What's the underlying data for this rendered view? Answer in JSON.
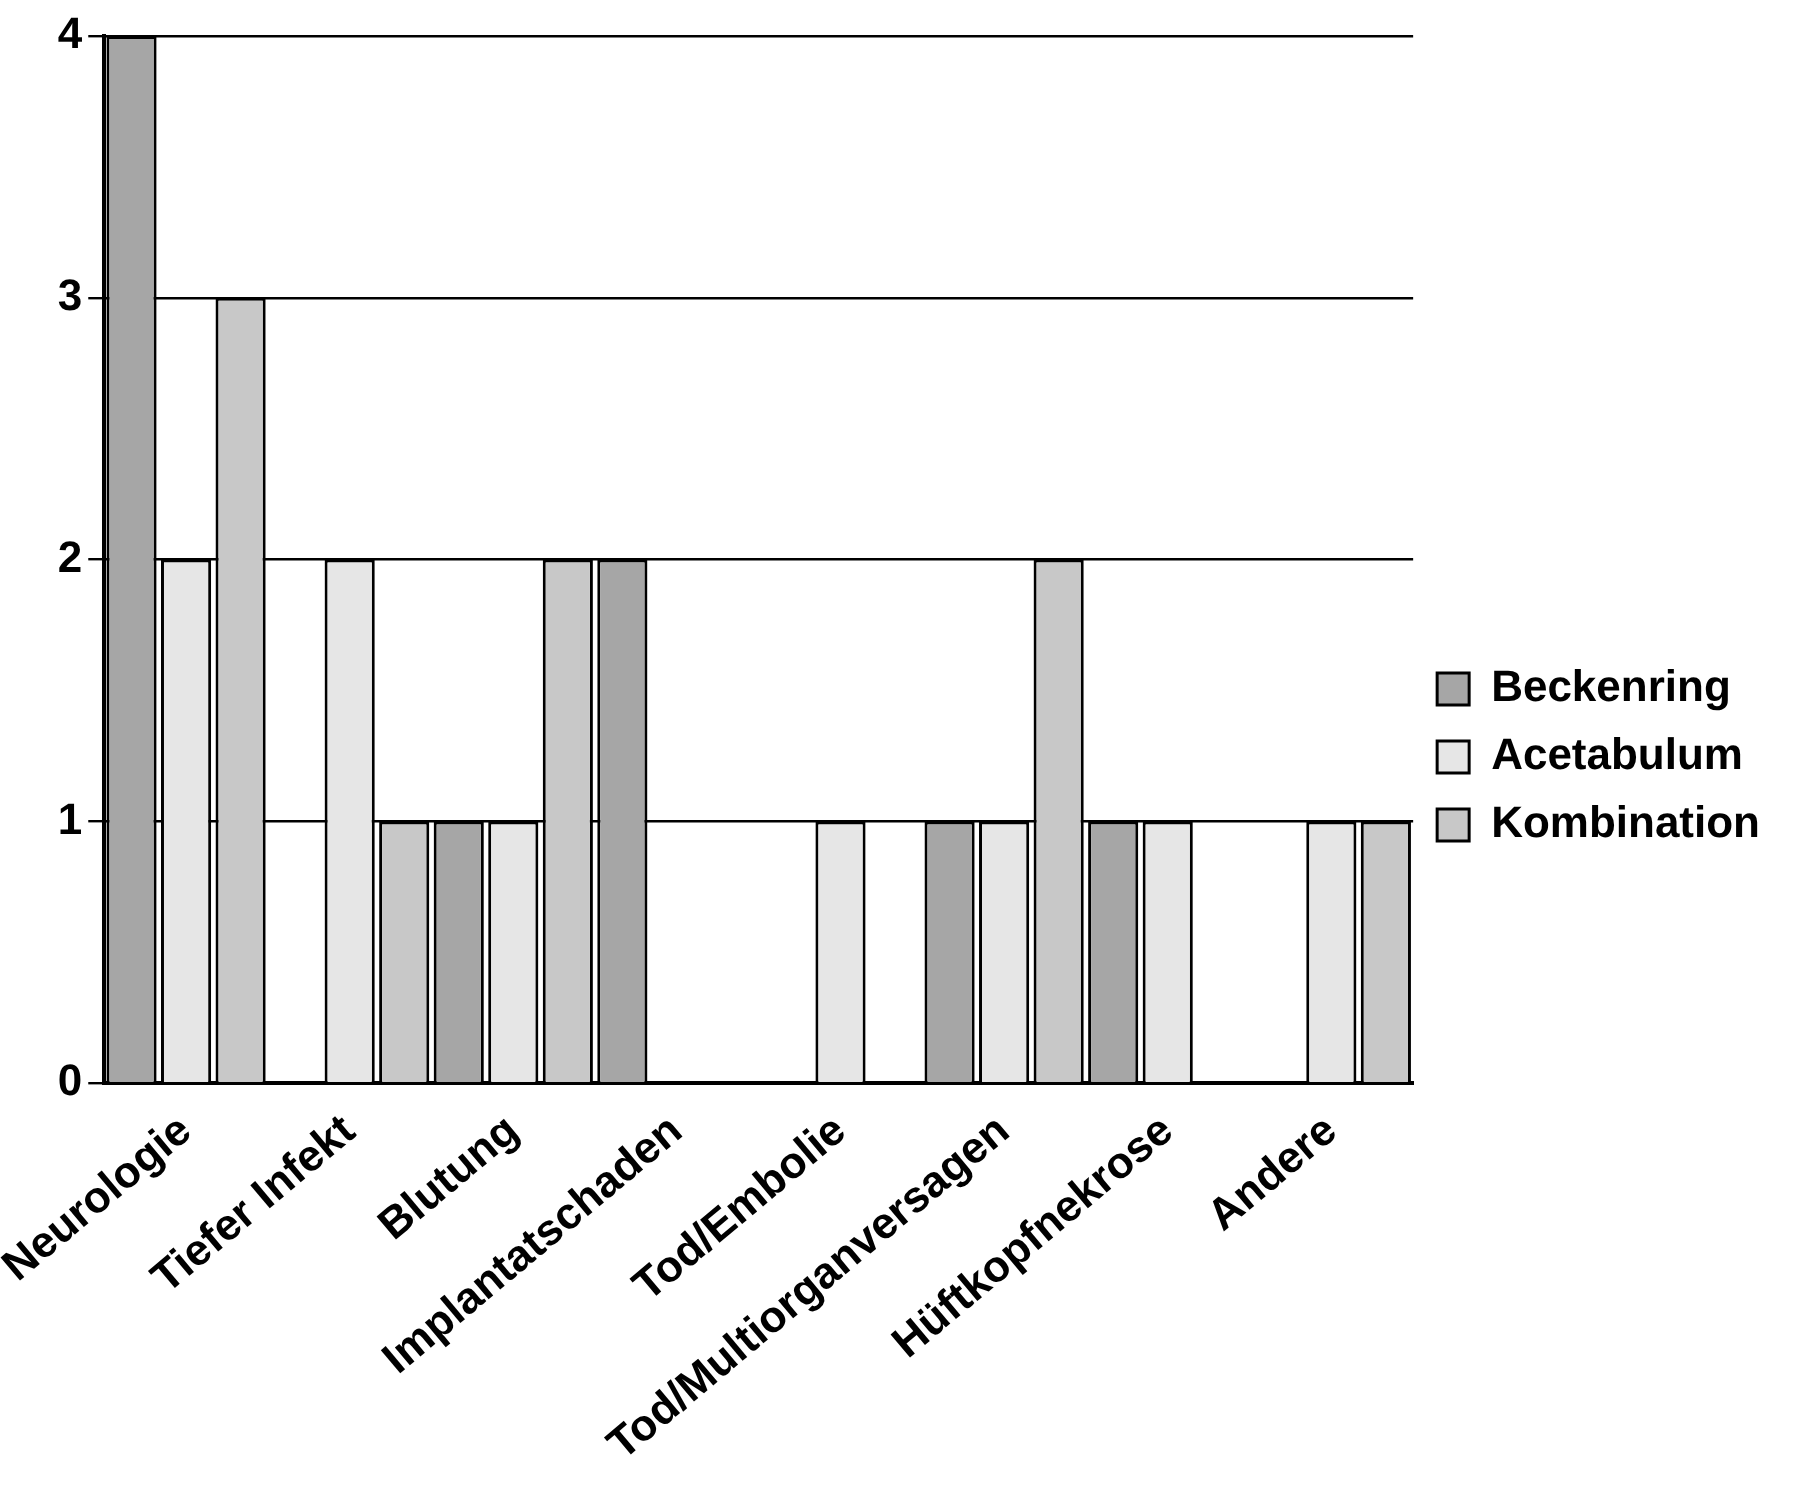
{
  "chart_data": {
    "type": "bar",
    "categories": [
      "Neurologie",
      "Tiefer Infekt",
      "Blutung",
      "Implantatschaden",
      "Tod/Embolie",
      "Tod/Multiorganversagen",
      "Hüftkopfnekrose",
      "Andere"
    ],
    "series": [
      {
        "name": "Beckenring",
        "color": "#a6a6a6",
        "values": [
          4,
          0,
          1,
          2,
          0,
          1,
          1,
          0
        ]
      },
      {
        "name": "Acetabulum",
        "color": "#e6e6e6",
        "values": [
          2,
          2,
          1,
          0,
          1,
          1,
          1,
          1
        ]
      },
      {
        "name": "Kombination",
        "color": "#c8c8c8",
        "values": [
          3,
          1,
          2,
          0,
          0,
          2,
          0,
          1
        ]
      }
    ],
    "ylim": [
      0,
      4
    ],
    "yticks": [
      0,
      1,
      2,
      3,
      4
    ],
    "grid": "y",
    "legend": "right"
  }
}
